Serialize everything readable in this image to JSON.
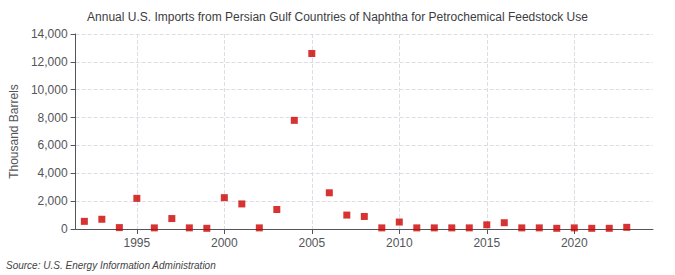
{
  "chart_data": {
    "type": "scatter",
    "title": "Annual U.S. Imports from Persian Gulf Countries of Naphtha for Petrochemical Feedstock Use",
    "ylabel": "Thousand Barrels",
    "annotation": "Source: U.S. Energy Information Administration",
    "x": [
      1992,
      1993,
      1994,
      1995,
      1996,
      1997,
      1998,
      1999,
      2000,
      2001,
      2002,
      2003,
      2004,
      2005,
      2006,
      2007,
      2008,
      2009,
      2010,
      2011,
      2012,
      2013,
      2014,
      2015,
      2016,
      2017,
      2018,
      2019,
      2020,
      2021,
      2022,
      2023
    ],
    "values": [
      550,
      700,
      100,
      2200,
      80,
      750,
      80,
      50,
      2250,
      1800,
      80,
      1400,
      7800,
      12600,
      2600,
      1000,
      900,
      80,
      500,
      80,
      80,
      80,
      80,
      300,
      450,
      80,
      80,
      50,
      80,
      50,
      50,
      120
    ],
    "color": "#cc0000",
    "marker": "square",
    "xlim": [
      1991.5,
      2024.5
    ],
    "xticks": [
      1995,
      2000,
      2005,
      2010,
      2015,
      2020
    ],
    "ylim": [
      0,
      14000
    ],
    "yticks": [
      0,
      {
        "value": 2000,
        "label": "2,000"
      },
      {
        "value": 4000,
        "label": "4,000"
      },
      {
        "value": 6000,
        "label": "6,000"
      },
      {
        "value": 8000,
        "label": "8,000"
      },
      {
        "value": 10000,
        "label": "10,000"
      },
      {
        "value": 12000,
        "label": "12,000"
      },
      {
        "value": 14000,
        "label": "14,000"
      }
    ],
    "grid": true
  }
}
